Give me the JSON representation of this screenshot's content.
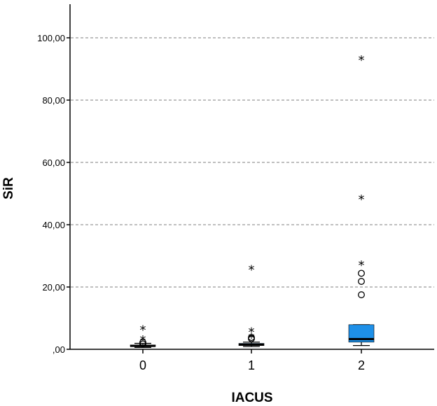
{
  "chart_data": {
    "type": "boxplot",
    "title": "",
    "xlabel": "IACUS",
    "ylabel": "SiR",
    "ylim": [
      0,
      110
    ],
    "y_ticks": [
      0,
      20,
      40,
      60,
      80,
      100
    ],
    "y_tick_labels": [
      ",00",
      "20,00",
      "40,00",
      "60,00",
      "80,00",
      "100,00"
    ],
    "grid": "horizontal dashed",
    "categories": [
      "0",
      "1",
      "2"
    ],
    "colors": {
      "box": "#1e90e8",
      "grid": "#aaaaaa",
      "axis": "#000000"
    },
    "boxes": [
      {
        "category": "0",
        "whisker_low": 0.6,
        "q1": 0.9,
        "median": 1.1,
        "q3": 1.4,
        "whisker_high": 1.9,
        "outliers": [
          1.7,
          2.2
        ],
        "extremes": [
          6.9,
          3.6
        ]
      },
      {
        "category": "1",
        "whisker_low": 0.9,
        "q1": 1.2,
        "median": 1.5,
        "q3": 1.9,
        "whisker_high": 2.3,
        "outliers": [
          3.4,
          3.8
        ],
        "extremes": [
          26.2,
          6.2,
          4.3
        ]
      },
      {
        "category": "2",
        "whisker_low": 1.2,
        "q1": 2.3,
        "median": 3.3,
        "q3": 7.9,
        "whisker_high": 7.9,
        "outliers": [
          17.5,
          21.8,
          24.4
        ],
        "extremes": [
          93.5,
          48.8,
          27.6
        ]
      }
    ]
  }
}
